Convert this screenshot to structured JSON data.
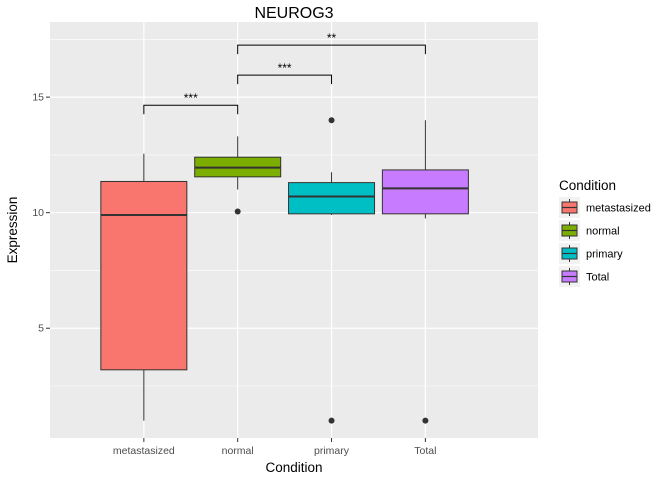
{
  "chart_data": {
    "type": "boxplot",
    "title": "NEUROG3",
    "xlabel": "Condition",
    "ylabel": "Expression",
    "ylim": [
      0.25,
      18.25
    ],
    "yticks": [
      5,
      10,
      15
    ],
    "categories": [
      "metastasized",
      "normal",
      "primary",
      "Total"
    ],
    "colors": [
      "#F8766D",
      "#7CAE00",
      "#00BFC4",
      "#C77CFF"
    ],
    "boxes": [
      {
        "category": "metastasized",
        "min": 1.0,
        "q1": 3.2,
        "median": 9.9,
        "q3": 11.35,
        "max": 12.55,
        "outliers": []
      },
      {
        "category": "normal",
        "min": 11.0,
        "q1": 11.55,
        "median": 11.95,
        "q3": 12.4,
        "max": 13.3,
        "outliers": [
          10.05
        ]
      },
      {
        "category": "primary",
        "min": 9.9,
        "q1": 9.95,
        "median": 10.7,
        "q3": 11.3,
        "max": 11.75,
        "outliers": [
          14.0,
          1.0
        ]
      },
      {
        "category": "Total",
        "min": 9.75,
        "q1": 9.95,
        "median": 11.05,
        "q3": 11.85,
        "max": 14.0,
        "outliers": [
          1.0
        ]
      }
    ],
    "significance": [
      {
        "from": "metastasized",
        "to": "normal",
        "y": 14.65,
        "label": "***"
      },
      {
        "from": "normal",
        "to": "primary",
        "y": 15.95,
        "label": "***"
      },
      {
        "from": "normal",
        "to": "Total",
        "y": 17.25,
        "label": "**"
      }
    ],
    "legend": {
      "title": "Condition",
      "position": "right",
      "items": [
        "metastasized",
        "normal",
        "primary",
        "Total"
      ]
    },
    "grid": true
  }
}
